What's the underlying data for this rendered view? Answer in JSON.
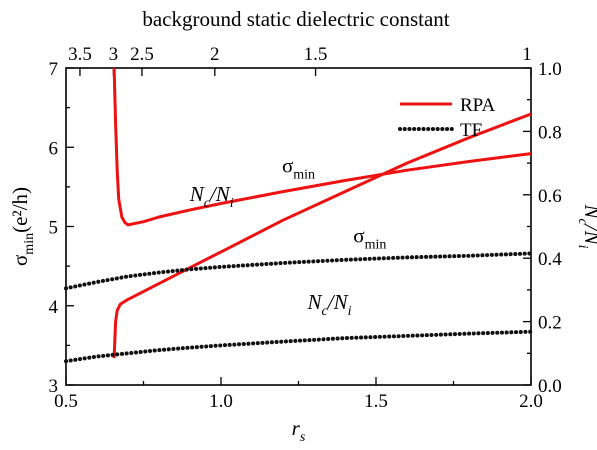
{
  "chart_data": {
    "type": "line",
    "title": "background static dielectric constant",
    "x": {
      "label": "r",
      "label_sub": "s",
      "range": [
        0.5,
        2.0
      ],
      "ticks": [
        "0.5",
        "1.0",
        "1.5",
        "2.0"
      ]
    },
    "y_left": {
      "label_main": "σ",
      "label_sub": "min",
      "label_unit": "(e²/h)",
      "range": [
        3,
        7
      ],
      "ticks": [
        "3",
        "4",
        "5",
        "6",
        "7"
      ]
    },
    "y_right": {
      "label_main": "N",
      "label_sub": "c",
      "label_mid": "/N",
      "label_sub2": "i",
      "range": [
        0.0,
        1.0
      ],
      "ticks": [
        "0.0",
        "0.2",
        "0.4",
        "0.6",
        "0.8",
        "1.0"
      ]
    },
    "top_axis": {
      "ticks": [
        {
          "label": "3.5",
          "rs": 0.545
        },
        {
          "label": "3",
          "rs": 0.653
        },
        {
          "label": "2.5",
          "rs": 0.745
        },
        {
          "label": "2",
          "rs": 0.98
        },
        {
          "label": "1.5",
          "rs": 1.305
        },
        {
          "label": "1",
          "rs": 2.0
        }
      ]
    },
    "legend": {
      "position": "top-right",
      "items": [
        {
          "name": "RPA",
          "color": "#ee1111",
          "style": "solid"
        },
        {
          "name": "TF",
          "color": "#111111",
          "style": "dotted"
        }
      ]
    },
    "annotations": [
      {
        "main": "σ",
        "sub": "min",
        "x": 1.25,
        "y": 5.68,
        "axis": "left"
      },
      {
        "main": "N",
        "sub": "c",
        "mid": "/N",
        "sub2": "i",
        "x": 0.97,
        "y": 0.58,
        "axis": "right",
        "italic": true
      },
      {
        "main": "σ",
        "sub": "min",
        "x": 1.48,
        "y": 4.8,
        "axis": "left"
      },
      {
        "main": "N",
        "sub": "c",
        "mid": "/N",
        "sub2": "i",
        "x": 1.35,
        "y": 0.24,
        "axis": "right",
        "italic": true
      }
    ],
    "series": [
      {
        "name": "RPA",
        "quantity": "sigma_min",
        "axis": "left",
        "color": "#ee1111",
        "style": "solid",
        "points": [
          [
            0.655,
            7.0
          ],
          [
            0.66,
            6.3
          ],
          [
            0.665,
            5.7
          ],
          [
            0.67,
            5.35
          ],
          [
            0.68,
            5.12
          ],
          [
            0.69,
            5.05
          ],
          [
            0.7,
            5.02
          ],
          [
            0.75,
            5.06
          ],
          [
            0.8,
            5.12
          ],
          [
            0.9,
            5.21
          ],
          [
            1.0,
            5.29
          ],
          [
            1.2,
            5.44
          ],
          [
            1.4,
            5.58
          ],
          [
            1.6,
            5.71
          ],
          [
            1.8,
            5.82
          ],
          [
            2.0,
            5.92
          ]
        ]
      },
      {
        "name": "RPA",
        "quantity": "Nc/Ni",
        "axis": "right",
        "color": "#ee1111",
        "style": "solid",
        "points": [
          [
            0.655,
            0.085
          ],
          [
            0.66,
            0.2
          ],
          [
            0.665,
            0.235
          ],
          [
            0.675,
            0.255
          ],
          [
            0.7,
            0.27
          ],
          [
            0.8,
            0.32
          ],
          [
            0.9,
            0.37
          ],
          [
            1.0,
            0.42
          ],
          [
            1.2,
            0.52
          ],
          [
            1.4,
            0.61
          ],
          [
            1.6,
            0.7
          ],
          [
            1.8,
            0.78
          ],
          [
            2.0,
            0.855
          ]
        ]
      },
      {
        "name": "TF",
        "quantity": "sigma_min",
        "axis": "left",
        "color": "#111111",
        "style": "dotted",
        "points": [
          [
            0.5,
            4.22
          ],
          [
            0.6,
            4.3
          ],
          [
            0.7,
            4.37
          ],
          [
            0.8,
            4.42
          ],
          [
            0.9,
            4.46
          ],
          [
            1.0,
            4.49
          ],
          [
            1.2,
            4.54
          ],
          [
            1.4,
            4.58
          ],
          [
            1.6,
            4.61
          ],
          [
            1.8,
            4.63
          ],
          [
            2.0,
            4.66
          ]
        ]
      },
      {
        "name": "TF",
        "quantity": "Nc/Ni",
        "axis": "right",
        "color": "#111111",
        "style": "dotted",
        "points": [
          [
            0.5,
            0.075
          ],
          [
            0.6,
            0.09
          ],
          [
            0.7,
            0.1
          ],
          [
            0.8,
            0.11
          ],
          [
            0.9,
            0.118
          ],
          [
            1.0,
            0.125
          ],
          [
            1.2,
            0.137
          ],
          [
            1.4,
            0.148
          ],
          [
            1.6,
            0.155
          ],
          [
            1.8,
            0.162
          ],
          [
            2.0,
            0.168
          ]
        ]
      }
    ]
  }
}
